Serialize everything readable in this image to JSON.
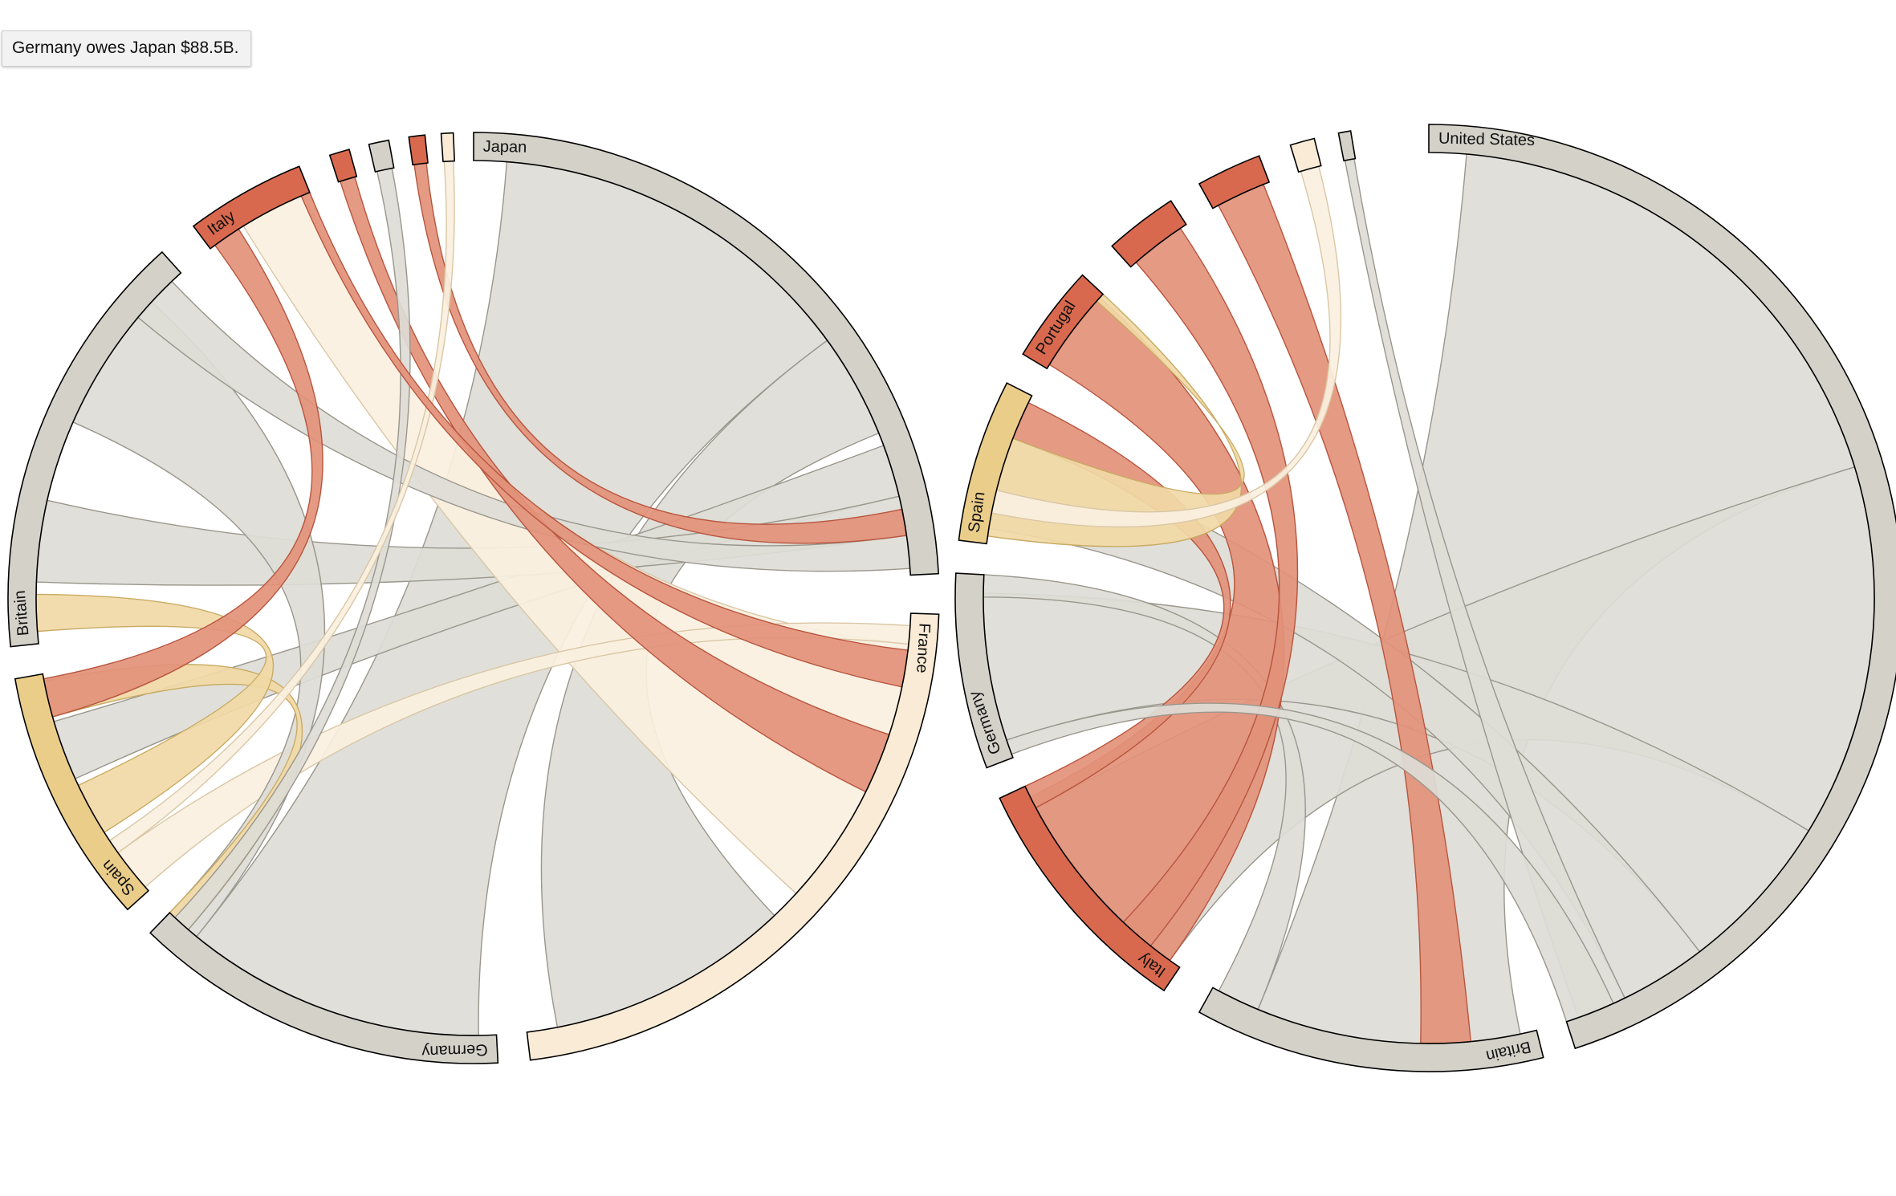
{
  "tooltip": {
    "text": "Germany owes Japan $88.5B."
  },
  "colors": {
    "grey": "#d4d1c9",
    "grey_chord": "#dddcd6",
    "red": "#d9694e",
    "red_chord": "#e3917a",
    "tan": "#ebcd8a",
    "tan_chord": "#f1d9a6",
    "cream": "#f9ebd5",
    "cream_chord": "#faf0df"
  },
  "diagrams": [
    {
      "id": "left",
      "groups": [
        {
          "name": "Japan",
          "color": "grey"
        },
        {
          "name": "France",
          "color": "cream"
        },
        {
          "name": "Germany",
          "color": "grey"
        },
        {
          "name": "Spain",
          "color": "tan"
        },
        {
          "name": "Britain",
          "color": "grey"
        },
        {
          "name": "Italy",
          "color": "red"
        },
        {
          "name": "",
          "color": "red"
        },
        {
          "name": "",
          "color": "grey"
        },
        {
          "name": "",
          "color": "red"
        },
        {
          "name": "",
          "color": "cream"
        }
      ]
    },
    {
      "id": "right",
      "groups": [
        {
          "name": "United States",
          "color": "grey"
        },
        {
          "name": "Britain",
          "color": "grey"
        },
        {
          "name": "Italy",
          "color": "red"
        },
        {
          "name": "Germany",
          "color": "grey"
        },
        {
          "name": "Spain",
          "color": "tan"
        },
        {
          "name": "Portugal",
          "color": "red"
        },
        {
          "name": "",
          "color": "red"
        },
        {
          "name": "",
          "color": "red"
        },
        {
          "name": "",
          "color": "cream"
        },
        {
          "name": "",
          "color": "grey"
        }
      ]
    }
  ]
}
